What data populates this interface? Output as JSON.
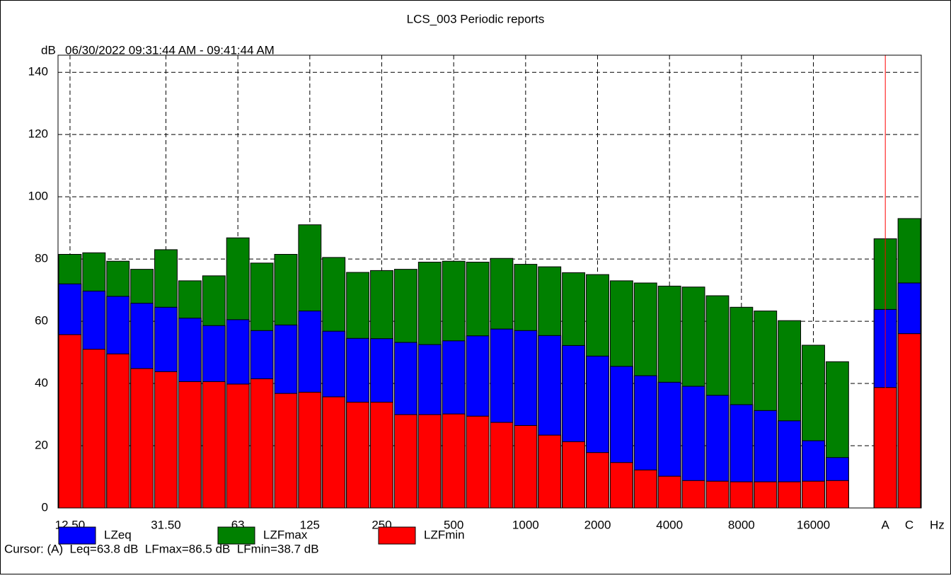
{
  "chart_data": {
    "type": "bar",
    "title": "LCS_003 Periodic reports",
    "subtitle": "06/30/2022 09:31:44 AM - 09:41:44 AM",
    "y_label": "dB",
    "x_label": "Hz",
    "categories": [
      "12.50",
      null,
      null,
      null,
      "31.50",
      null,
      null,
      "63",
      null,
      null,
      "125",
      null,
      null,
      "250",
      null,
      null,
      "500",
      null,
      null,
      "1000",
      null,
      null,
      "2000",
      null,
      null,
      "4000",
      null,
      null,
      "8000",
      null,
      null,
      "16000",
      null,
      null,
      "A",
      "C"
    ],
    "series": [
      {
        "name": "LZFmax",
        "color": "#008000",
        "values": [
          81.5,
          82,
          79.3,
          76.7,
          83,
          73,
          74.6,
          86.8,
          78.7,
          81.5,
          91,
          80.5,
          75.7,
          76.3,
          76.7,
          79,
          79.3,
          79,
          80.2,
          78.3,
          77.5,
          75.6,
          75,
          73,
          72.3,
          71.3,
          71,
          68.2,
          64.5,
          63.3,
          60.2,
          52.3,
          47,
          null,
          86.5,
          93
        ]
      },
      {
        "name": "LZeq",
        "color": "#0000ff",
        "values": [
          72,
          69.7,
          68,
          65.8,
          64.5,
          61,
          58.6,
          60.5,
          57,
          58.8,
          63.3,
          56.8,
          54.5,
          54.4,
          53.2,
          52.5,
          53.7,
          55.3,
          57.5,
          57,
          55.4,
          52.2,
          48.8,
          45.5,
          42.5,
          40.4,
          39.1,
          36.2,
          33.2,
          31.3,
          28,
          21.6,
          16.2,
          null,
          63.8,
          72.3
        ]
      },
      {
        "name": "LZFmin",
        "color": "#ff0000",
        "values": [
          55.7,
          51,
          49.5,
          44.8,
          43.8,
          40.6,
          40.6,
          39.8,
          41.5,
          36.8,
          37.2,
          35.7,
          34,
          34,
          30,
          30,
          30.2,
          29.5,
          27.5,
          26.5,
          23.4,
          21.3,
          17.8,
          14.6,
          12.2,
          10.2,
          8.8,
          8.6,
          8.4,
          8.4,
          8.4,
          8.6,
          8.8,
          null,
          38.7,
          56
        ]
      }
    ],
    "legend_order": [
      1,
      0,
      2
    ],
    "ylim": [
      0,
      145.5
    ],
    "yticks": [
      0,
      20,
      40,
      60,
      80,
      100,
      120,
      140
    ],
    "grid": true,
    "cursor_text": "Cursor: (A)  Leq=63.8 dB  LFmax=86.5 dB  LFmin=38.7 dB"
  }
}
